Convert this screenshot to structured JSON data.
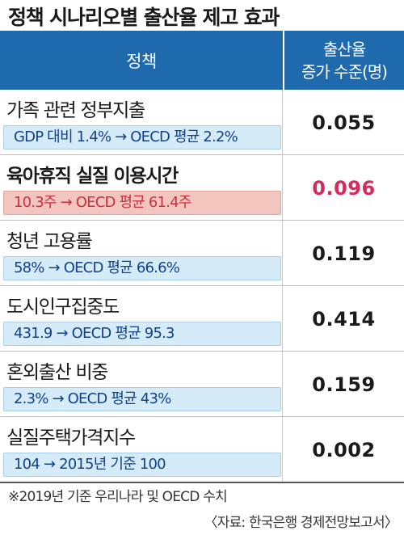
{
  "title": "정책 시나리오별 출산율 제고 효과",
  "header": {
    "policy": "정책",
    "effect_line1": "출산율",
    "effect_line2": "증가 수준(명)"
  },
  "chart_data": {
    "type": "table",
    "title": "정책 시나리오별 출산율 제고 효과",
    "columns": [
      "정책",
      "출산율 증가 수준(명)"
    ],
    "rows": [
      {
        "policy": "가족 관련 정부지출",
        "scenario": "GDP 대비 1.4% → OECD 평균 2.2%",
        "value": "0.055",
        "highlight": false
      },
      {
        "policy": "육아휴직 실질 이용시간",
        "scenario": "10.3주 → OECD 평균 61.4주",
        "value": "0.096",
        "highlight": true
      },
      {
        "policy": "청년 고용률",
        "scenario": "58% → OECD 평균 66.6%",
        "value": "0.119",
        "highlight": false
      },
      {
        "policy": "도시인구집중도",
        "scenario": "431.9 → OECD 평균 95.3",
        "value": "0.414",
        "highlight": false
      },
      {
        "policy": "혼외출산 비중",
        "scenario": "2.3% → OECD 평균 43%",
        "value": "0.159",
        "highlight": false
      },
      {
        "policy": "실질주택가격지수",
        "scenario": "104 → 2015년 기준 100",
        "value": "0.002",
        "highlight": false
      }
    ]
  },
  "note": "※2019년 기준 우리나라 및 OECD 수치",
  "source": "〈자료: 한국은행 경제전망보고서〉",
  "colors": {
    "header_bg": "#1f69ad",
    "bar_bg": "#d5ebf8",
    "highlight_bar_bg": "#f2c6bf",
    "highlight_text": "#d42a5d"
  }
}
